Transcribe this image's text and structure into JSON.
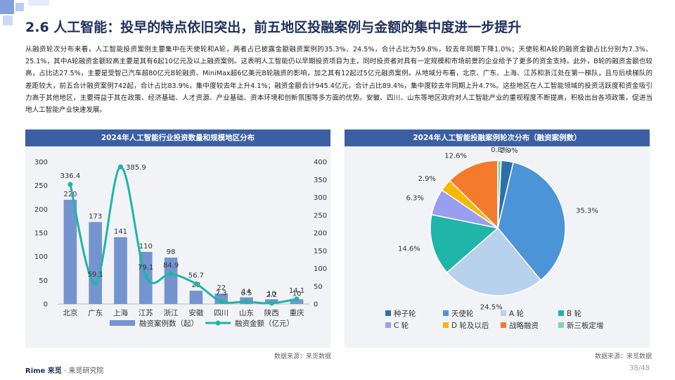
{
  "page": {
    "title": "2.6 人工智能：投早的特点依旧突出，前五地区投融案例与金额的集中度进一步提升",
    "paragraph": "从融资轮次分布来看，人工智能投资案例主要集中在天使轮和A轮，两者占已披露金额融资案例的35.3%、24.5%，合计占比为59.8%，较去年同期下降1.0%；天使轮和A轮的融资金额占比分别为7.3%、25.1%，其中A轮融资金额较高主要是其有6起10亿元及以上融资案例。这表明人工智能仍以早期投资项目为主，同时投资者对具有一定规模和市场前景的企业给予了更多的资金支持。此外，B轮的融资金额也较高，占比达27.5%，主要是受智己汽车超80亿元B轮融资、MiniMax超6亿美元B轮融资的影响，加之其有12起过5亿元融资案例。从地域分布看，北京、广东、上海、江苏和浙江处在第一梯队，且与后续梯队的差距较大，前五合计融资案例742起，合计占比83.9%，集中度较去年上升4.1%；融资金额合计945.4亿元，合计占比89.4%，集中度较去年同期上升4.7%。这些地区在人工智能领域的投资活跃度和资金吸引力高于其他地区，主要得益于其在政策、经济基础、人才资源、产业基础、资本环境和创新氛围等多方面的优势。安徽、四川、山东等地区政府对人工智能产业的重视程度不断提高，积极出台各项政策，促进当地人工智能产业快速发展。",
    "source_left": "数据来源：来觅数据",
    "source_right": "数据来源：来觅数据",
    "footer_brand": "Rime 来觅",
    "footer_org": "· 来觅研究院",
    "page_number": "38/48"
  },
  "colors": {
    "header_bg": "#3b5fa3",
    "bar": "#7394cf",
    "line": "#1fb5a8",
    "title": "#1f2f5c"
  },
  "chart_data": [
    {
      "type": "bar",
      "title": "2024年人工智能行业投资数量和规模地区分布",
      "categories": [
        "北京",
        "广东",
        "上海",
        "江苏",
        "浙江",
        "安徽",
        "四川",
        "山东",
        "陕西",
        "重庆"
      ],
      "y_left_ticks": [
        "0",
        "50",
        "100",
        "150",
        "200",
        "250",
        "300"
      ],
      "y_right_ticks": [
        "0",
        "50",
        "100",
        "150",
        "200",
        "250",
        "300",
        "350",
        "400"
      ],
      "ylim_left": [
        0,
        300
      ],
      "ylim_right": [
        0,
        400
      ],
      "series": [
        {
          "name": "融资案例数（起）",
          "type": "bar",
          "axis": "left",
          "values": [
            220,
            173,
            141,
            110,
            98,
            28,
            22,
            14,
            10,
            10
          ],
          "labels": [
            "220",
            "173",
            "141",
            "110",
            "98",
            "28",
            "22",
            "14",
            "10",
            "10"
          ]
        },
        {
          "name": "融资金额（亿元）",
          "type": "line",
          "axis": "right",
          "values": [
            336.4,
            59.1,
            385.9,
            79.1,
            84.9,
            56.7,
            7.3,
            6.5,
            2.2,
            14.1
          ],
          "labels": [
            "336.4",
            "59.1",
            "385.9",
            "79.1",
            "84.9",
            "56.7",
            "7.3",
            "6.5",
            "2.2",
            "14.1"
          ]
        }
      ],
      "legend": "bottom",
      "grid": false
    },
    {
      "type": "pie",
      "title": "2024年人工智能投融案例轮次分布（融资案例数）",
      "slices": [
        {
          "name": "种子轮",
          "value": 2.9,
          "label": "2.9%",
          "color": "#2e6eaa"
        },
        {
          "name": "天使轮",
          "value": 35.3,
          "label": "35.3%",
          "color": "#4b94d8"
        },
        {
          "name": "A 轮",
          "value": 24.5,
          "label": "24.5%",
          "color": "#b8d2ee"
        },
        {
          "name": "B 轮",
          "value": 14.6,
          "label": "14.6%",
          "color": "#1fb5a8"
        },
        {
          "name": "C 轮",
          "value": 6.3,
          "label": "6.3%",
          "color": "#9a9ef0"
        },
        {
          "name": "D 轮及以后",
          "value": 2.9,
          "label": "2.9%",
          "color": "#f6b800"
        },
        {
          "name": "战略融资",
          "value": 12.6,
          "label": "12.6%",
          "color": "#f47a2c"
        },
        {
          "name": "新三板定增",
          "value": 0.8,
          "label": "0.8%",
          "color": "#7fd6a8"
        }
      ],
      "legend": "bottom"
    }
  ]
}
